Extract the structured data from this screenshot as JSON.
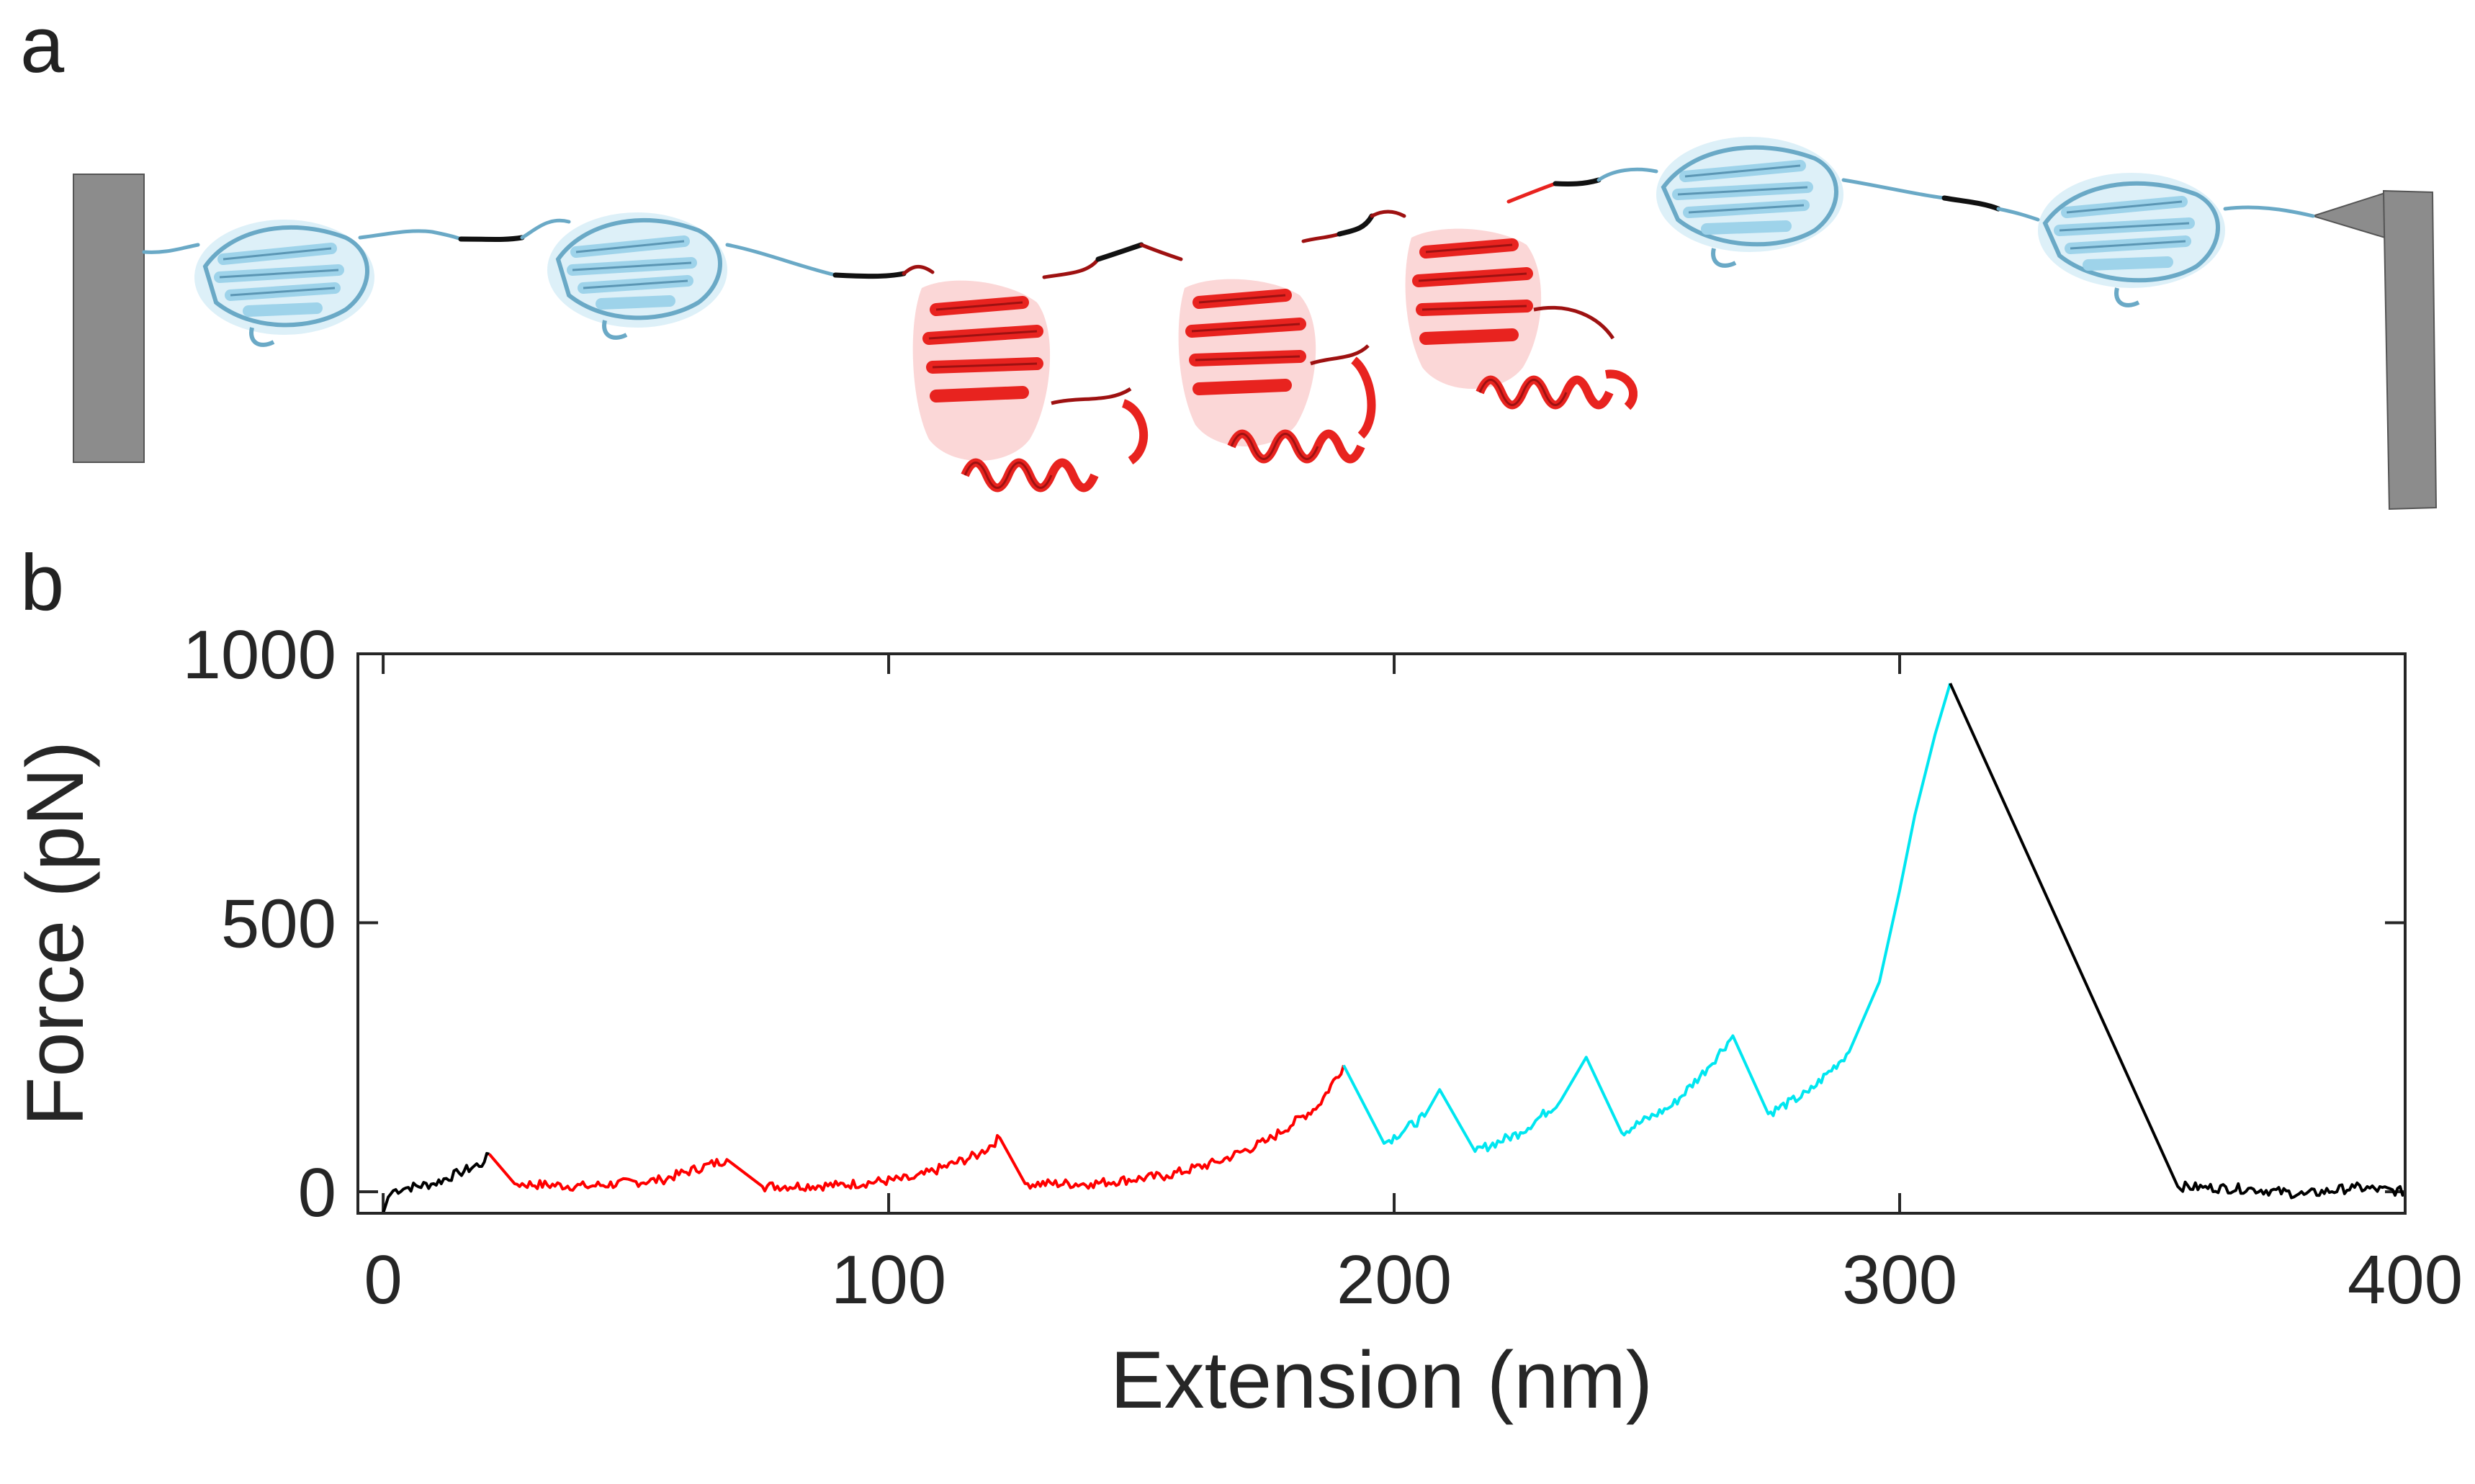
{
  "panels": {
    "a": "a",
    "b": "b"
  },
  "schematic": {
    "colors": {
      "anchor": "#8c8c8c",
      "blue_domain": "#9ed3ea",
      "blue_dark": "#6aa9c6",
      "red_domain": "#e8231f",
      "red_dark": "#9e1111",
      "linker": "#111111"
    },
    "blue_domains_left": 2,
    "red_domains": 3,
    "blue_domains_right": 2
  },
  "chart_data": {
    "type": "line",
    "xlabel": "Extension (nm)",
    "ylabel": "Force (pN)",
    "xlim": [
      -5,
      400
    ],
    "ylim": [
      -40,
      1000
    ],
    "xticks": [
      0,
      100,
      200,
      300,
      400
    ],
    "yticks": [
      0,
      500,
      1000
    ],
    "grid": false,
    "legend": "none",
    "series": [
      {
        "color": "#000000",
        "points": [
          [
            0,
            -40
          ],
          [
            1,
            -10
          ],
          [
            2,
            2
          ],
          [
            5,
            8
          ],
          [
            10,
            15
          ],
          [
            15,
            35
          ],
          [
            20,
            55
          ],
          [
            21,
            70
          ]
        ]
      },
      {
        "color": "#ff0000",
        "points": [
          [
            21,
            70
          ],
          [
            26,
            15
          ],
          [
            40,
            10
          ],
          [
            55,
            22
          ],
          [
            68,
            60
          ],
          [
            75,
            10
          ],
          [
            90,
            12
          ],
          [
            105,
            25
          ],
          [
            118,
            70
          ],
          [
            122,
            100
          ],
          [
            127,
            15
          ],
          [
            140,
            15
          ],
          [
            155,
            30
          ],
          [
            165,
            55
          ],
          [
            175,
            95
          ],
          [
            185,
            160
          ],
          [
            190,
            235
          ]
        ]
      },
      {
        "color": "#00e6f0",
        "points": [
          [
            190,
            235
          ],
          [
            198,
            90
          ],
          [
            206,
            140
          ],
          [
            209,
            190
          ],
          [
            216,
            75
          ],
          [
            225,
            110
          ],
          [
            233,
            170
          ],
          [
            238,
            250
          ],
          [
            245,
            110
          ],
          [
            255,
            160
          ],
          [
            262,
            230
          ],
          [
            267,
            290
          ],
          [
            274,
            145
          ],
          [
            282,
            185
          ],
          [
            290,
            260
          ],
          [
            296,
            390
          ],
          [
            300,
            560
          ],
          [
            303,
            700
          ],
          [
            307,
            850
          ],
          [
            310,
            945
          ]
        ]
      },
      {
        "color": "#000000",
        "points": [
          [
            310,
            945
          ],
          [
            355,
            10
          ],
          [
            360,
            8
          ],
          [
            370,
            5
          ],
          [
            380,
            -5
          ],
          [
            390,
            8
          ],
          [
            400,
            0
          ]
        ]
      }
    ]
  }
}
